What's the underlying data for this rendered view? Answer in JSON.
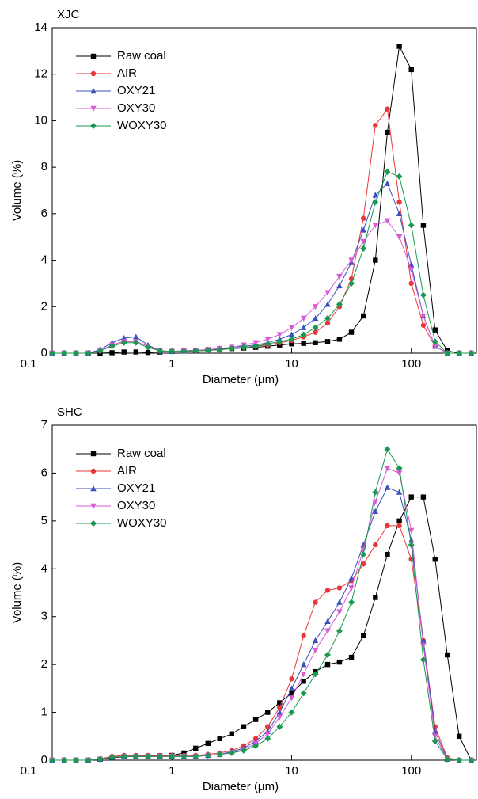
{
  "chart_data": [
    {
      "type": "line",
      "title": "XJC",
      "x_label": "Diameter (μm)",
      "y_label": "Volume (%)",
      "x_scale": "log",
      "xlim": [
        0.1,
        350
      ],
      "xticks": [
        0.1,
        1,
        10,
        100
      ],
      "ylim": [
        0,
        14
      ],
      "yticks": [
        0,
        2,
        4,
        6,
        8,
        10,
        12,
        14
      ],
      "legend": "upper left",
      "x": [
        0.1,
        0.126,
        0.158,
        0.2,
        0.251,
        0.316,
        0.398,
        0.501,
        0.631,
        0.794,
        1,
        1.26,
        1.58,
        2,
        2.51,
        3.16,
        3.98,
        5.01,
        6.31,
        7.94,
        10,
        12.6,
        15.8,
        20,
        25.1,
        31.6,
        39.8,
        50.1,
        63.1,
        79.4,
        100,
        126,
        158,
        200,
        251,
        316
      ],
      "series": [
        {
          "name": "Raw coal",
          "color": "#000000",
          "marker": "square",
          "values": [
            0,
            0,
            0,
            0,
            0,
            0.02,
            0.05,
            0.05,
            0.03,
            0.05,
            0.08,
            0.1,
            0.12,
            0.15,
            0.18,
            0.2,
            0.22,
            0.25,
            0.3,
            0.35,
            0.4,
            0.42,
            0.45,
            0.5,
            0.6,
            0.9,
            1.6,
            4.0,
            9.5,
            13.2,
            12.2,
            5.5,
            1.0,
            0.1,
            0,
            0
          ]
        },
        {
          "name": "AIR",
          "color": "#e8373a",
          "marker": "circle",
          "values": [
            0,
            0,
            0,
            0,
            0.1,
            0.35,
            0.5,
            0.5,
            0.3,
            0.1,
            0.08,
            0.08,
            0.1,
            0.12,
            0.15,
            0.2,
            0.25,
            0.3,
            0.35,
            0.45,
            0.55,
            0.7,
            0.9,
            1.3,
            2.0,
            3.2,
            5.8,
            9.8,
            10.5,
            6.5,
            3.0,
            1.2,
            0.3,
            0,
            0,
            0
          ]
        },
        {
          "name": "OXY21",
          "color": "#3a4fc0",
          "marker": "triangle-up",
          "values": [
            0,
            0,
            0,
            0,
            0.15,
            0.45,
            0.65,
            0.7,
            0.35,
            0.1,
            0.08,
            0.1,
            0.12,
            0.15,
            0.2,
            0.25,
            0.3,
            0.35,
            0.45,
            0.6,
            0.8,
            1.1,
            1.5,
            2.1,
            2.9,
            3.9,
            5.3,
            6.8,
            7.3,
            6.0,
            3.8,
            1.6,
            0.3,
            0,
            0,
            0
          ]
        },
        {
          "name": "OXY30",
          "color": "#d85ad8",
          "marker": "triangle-down",
          "values": [
            0,
            0,
            0,
            0,
            0.1,
            0.35,
            0.5,
            0.5,
            0.3,
            0.1,
            0.08,
            0.1,
            0.12,
            0.15,
            0.2,
            0.25,
            0.35,
            0.45,
            0.6,
            0.8,
            1.1,
            1.5,
            2.0,
            2.6,
            3.3,
            4.0,
            4.8,
            5.5,
            5.7,
            5.0,
            3.6,
            1.6,
            0.3,
            0,
            0,
            0
          ]
        },
        {
          "name": "WOXY30",
          "color": "#1a9a50",
          "marker": "diamond",
          "values": [
            0,
            0,
            0,
            0,
            0.1,
            0.3,
            0.45,
            0.45,
            0.25,
            0.1,
            0.08,
            0.08,
            0.1,
            0.12,
            0.15,
            0.2,
            0.25,
            0.3,
            0.4,
            0.5,
            0.6,
            0.8,
            1.1,
            1.5,
            2.1,
            3.0,
            4.5,
            6.5,
            7.8,
            7.6,
            5.5,
            2.5,
            0.5,
            0,
            0,
            0
          ]
        }
      ]
    },
    {
      "type": "line",
      "title": "SHC",
      "x_label": "Diameter (μm)",
      "y_label": "Volume (%)",
      "x_scale": "log",
      "xlim": [
        0.1,
        350
      ],
      "xticks": [
        0.1,
        1,
        10,
        100
      ],
      "ylim": [
        0,
        7
      ],
      "yticks": [
        0,
        1,
        2,
        3,
        4,
        5,
        6,
        7
      ],
      "legend": "upper left",
      "x": [
        0.1,
        0.126,
        0.158,
        0.2,
        0.251,
        0.316,
        0.398,
        0.501,
        0.631,
        0.794,
        1,
        1.26,
        1.58,
        2,
        2.51,
        3.16,
        3.98,
        5.01,
        6.31,
        7.94,
        10,
        12.6,
        15.8,
        20,
        25.1,
        31.6,
        39.8,
        50.1,
        63.1,
        79.4,
        100,
        126,
        158,
        200,
        251,
        316
      ],
      "series": [
        {
          "name": "Raw coal",
          "color": "#000000",
          "marker": "square",
          "values": [
            0,
            0,
            0,
            0,
            0.02,
            0.05,
            0.07,
            0.08,
            0.08,
            0.09,
            0.1,
            0.15,
            0.25,
            0.35,
            0.45,
            0.55,
            0.7,
            0.85,
            1.0,
            1.2,
            1.4,
            1.65,
            1.85,
            2.0,
            2.05,
            2.15,
            2.6,
            3.4,
            4.3,
            5.0,
            5.5,
            5.5,
            4.2,
            2.2,
            0.5,
            0
          ]
        },
        {
          "name": "AIR",
          "color": "#e8373a",
          "marker": "circle",
          "values": [
            0,
            0,
            0,
            0,
            0.03,
            0.08,
            0.1,
            0.1,
            0.1,
            0.1,
            0.1,
            0.1,
            0.1,
            0.12,
            0.15,
            0.2,
            0.3,
            0.45,
            0.7,
            1.1,
            1.7,
            2.6,
            3.3,
            3.55,
            3.6,
            3.75,
            4.1,
            4.5,
            4.9,
            4.9,
            4.2,
            2.5,
            0.7,
            0.05,
            0,
            0
          ]
        },
        {
          "name": "OXY21",
          "color": "#3a4fc0",
          "marker": "triangle-up",
          "values": [
            0,
            0,
            0,
            0,
            0.02,
            0.06,
            0.08,
            0.08,
            0.08,
            0.08,
            0.08,
            0.08,
            0.08,
            0.1,
            0.12,
            0.18,
            0.25,
            0.4,
            0.6,
            1.0,
            1.5,
            2.0,
            2.5,
            2.9,
            3.3,
            3.8,
            4.5,
            5.2,
            5.7,
            5.6,
            4.6,
            2.5,
            0.6,
            0.02,
            0,
            0
          ]
        },
        {
          "name": "OXY30",
          "color": "#d85ad8",
          "marker": "triangle-down",
          "values": [
            0,
            0,
            0,
            0,
            0.02,
            0.06,
            0.08,
            0.08,
            0.08,
            0.08,
            0.08,
            0.08,
            0.08,
            0.1,
            0.12,
            0.16,
            0.22,
            0.35,
            0.55,
            0.9,
            1.3,
            1.8,
            2.3,
            2.7,
            3.1,
            3.6,
            4.4,
            5.4,
            6.1,
            6.0,
            4.8,
            2.4,
            0.5,
            0.02,
            0,
            0
          ]
        },
        {
          "name": "WOXY30",
          "color": "#1a9a50",
          "marker": "diamond",
          "values": [
            0,
            0,
            0,
            0,
            0.02,
            0.06,
            0.08,
            0.08,
            0.08,
            0.08,
            0.08,
            0.08,
            0.08,
            0.1,
            0.12,
            0.15,
            0.2,
            0.3,
            0.45,
            0.7,
            1.0,
            1.4,
            1.8,
            2.2,
            2.7,
            3.3,
            4.3,
            5.6,
            6.5,
            6.1,
            4.5,
            2.1,
            0.4,
            0.02,
            0,
            0
          ]
        }
      ]
    }
  ]
}
